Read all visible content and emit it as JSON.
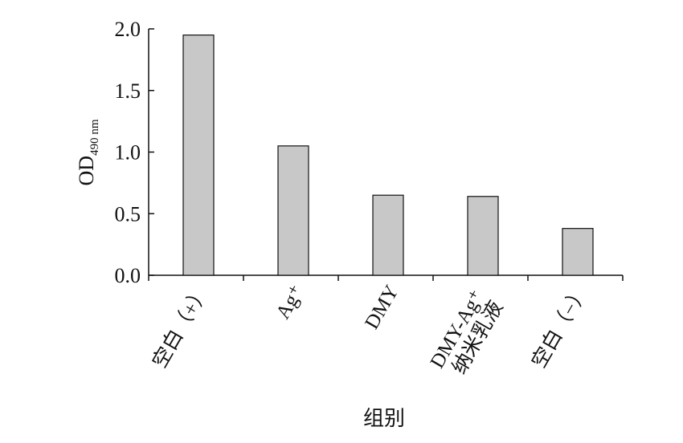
{
  "chart_data": {
    "type": "bar",
    "y_label": "OD",
    "y_label_subscript": "490 nm",
    "x_label": "组别",
    "categories": [
      [
        "空白（+）"
      ],
      [
        "Ag⁺"
      ],
      [
        "DMY"
      ],
      [
        "DMY-Ag⁺",
        "纳米乳液"
      ],
      [
        "空白（−）"
      ]
    ],
    "values": [
      1.95,
      1.05,
      0.65,
      0.64,
      0.38
    ],
    "color": "#c8c8c8",
    "ylim": [
      0,
      2.0
    ],
    "yticks": [
      {
        "value": 0,
        "label": "0.0"
      },
      {
        "value": 0.5,
        "label": "0.5"
      },
      {
        "value": 1.0,
        "label": "1.0"
      },
      {
        "value": 1.5,
        "label": "1.5"
      },
      {
        "value": 2.0,
        "label": "2.0"
      }
    ],
    "grid": false
  }
}
